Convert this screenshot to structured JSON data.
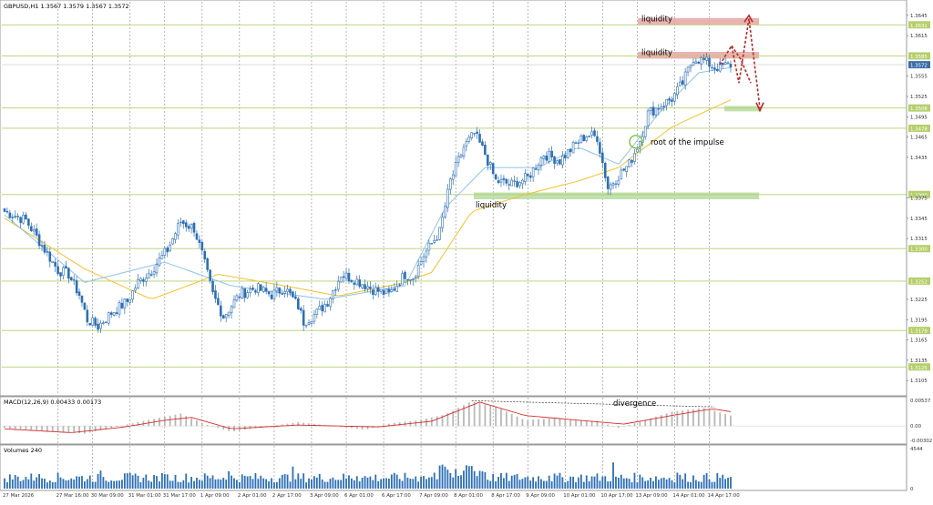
{
  "header": {
    "symbol": "GBPUSD,H1",
    "ohlc": "1.3567 1.3579 1.3567 1.3572"
  },
  "colors": {
    "bull": "#2d6fb5",
    "bear": "#2d6fb5",
    "grid": "#8c8c8c",
    "level": "#b5cf6b",
    "ma_fast": "#8fc3e8",
    "ma_slow": "#f2c230",
    "macd_signal": "#d32f2f",
    "macd_hist": "#b8b8b8",
    "volume": "#2d6fb5",
    "arrow": "#b52a2a",
    "zone_red": "#e8a4a4",
    "zone_green": "#b9dea4",
    "price_tag": "#b5cf6b"
  },
  "chart_data": {
    "type": "candlestick",
    "y_range": [
      1.3085,
      1.3665
    ],
    "price_ticks": [
      "1.3645",
      "1.3615",
      "1.3555",
      "1.3525",
      "1.3495",
      "1.3465",
      "1.3435",
      "1.3375",
      "1.3345",
      "1.3315",
      "1.3225",
      "1.3195",
      "1.3165",
      "1.3135",
      "1.3105"
    ],
    "levels": [
      {
        "price": 1.3631,
        "label": "1.3631"
      },
      {
        "price": 1.3585,
        "label": "1.3585"
      },
      {
        "price": 1.3508,
        "label": "1.3508"
      },
      {
        "price": 1.3478,
        "label": "1.3478"
      },
      {
        "price": 1.338,
        "label": "1.3380"
      },
      {
        "price": 1.33,
        "label": "1.3300"
      },
      {
        "price": 1.3252,
        "label": "1.3252"
      },
      {
        "price": 1.3179,
        "label": "1.3179"
      },
      {
        "price": 1.3125,
        "label": "1.3125"
      }
    ],
    "current_price": {
      "price": 1.3572,
      "label": "1.3572"
    },
    "x_labels": [
      "27 Mar 2026",
      "27 Mar 16:00",
      "30 Mar 09:00",
      "31 Mar 01:00",
      "31 Mar 17:00",
      "1 Apr 09:00",
      "2 Apr 01:00",
      "2 Apr 17:00",
      "3 Apr 09:00",
      "6 Apr 01:00",
      "6 Apr 17:00",
      "7 Apr 09:00",
      "8 Apr 01:00",
      "8 Apr 17:00",
      "9 Apr 09:00",
      "10 Apr 01:00",
      "10 Apr 17:00",
      "13 Apr 09:00",
      "14 Apr 01:00",
      "14 Apr 17:00"
    ],
    "close_anchors": [
      [
        0,
        1.3355
      ],
      [
        8,
        1.3342
      ],
      [
        14,
        1.3305
      ],
      [
        20,
        1.3268
      ],
      [
        24,
        1.3262
      ],
      [
        28,
        1.3232
      ],
      [
        31,
        1.3195
      ],
      [
        35,
        1.3185
      ],
      [
        40,
        1.3205
      ],
      [
        46,
        1.3222
      ],
      [
        50,
        1.325
      ],
      [
        55,
        1.3268
      ],
      [
        61,
        1.3298
      ],
      [
        66,
        1.334
      ],
      [
        71,
        1.333
      ],
      [
        74,
        1.3292
      ],
      [
        78,
        1.3232
      ],
      [
        82,
        1.32
      ],
      [
        88,
        1.3232
      ],
      [
        94,
        1.3242
      ],
      [
        100,
        1.3232
      ],
      [
        105,
        1.3242
      ],
      [
        110,
        1.3215
      ],
      [
        112,
        1.3192
      ],
      [
        117,
        1.3205
      ],
      [
        121,
        1.3222
      ],
      [
        126,
        1.3262
      ],
      [
        131,
        1.3255
      ],
      [
        138,
        1.324
      ],
      [
        144,
        1.3232
      ],
      [
        150,
        1.3262
      ],
      [
        153,
        1.3258
      ],
      [
        157,
        1.329
      ],
      [
        163,
        1.3325
      ],
      [
        167,
        1.34
      ],
      [
        172,
        1.345
      ],
      [
        176,
        1.347
      ],
      [
        180,
        1.344
      ],
      [
        184,
        1.34
      ],
      [
        190,
        1.3395
      ],
      [
        196,
        1.3405
      ],
      [
        202,
        1.344
      ],
      [
        208,
        1.343
      ],
      [
        214,
        1.3455
      ],
      [
        218,
        1.3468
      ],
      [
        222,
        1.3465
      ],
      [
        226,
        1.339
      ],
      [
        230,
        1.3408
      ],
      [
        234,
        1.3425
      ],
      [
        238,
        1.346
      ],
      [
        241,
        1.35
      ],
      [
        246,
        1.3512
      ],
      [
        250,
        1.3522
      ],
      [
        254,
        1.3545
      ],
      [
        258,
        1.3582
      ],
      [
        262,
        1.3578
      ],
      [
        266,
        1.3568
      ],
      [
        272,
        1.3572
      ]
    ],
    "ma_slow": [
      [
        0,
        1.3345
      ],
      [
        30,
        1.327
      ],
      [
        55,
        1.3225
      ],
      [
        80,
        1.3262
      ],
      [
        105,
        1.3245
      ],
      [
        125,
        1.323
      ],
      [
        150,
        1.325
      ],
      [
        160,
        1.3265
      ],
      [
        175,
        1.3355
      ],
      [
        195,
        1.338
      ],
      [
        215,
        1.34
      ],
      [
        230,
        1.342
      ],
      [
        250,
        1.348
      ],
      [
        272,
        1.352
      ]
    ],
    "ma_fast": [
      [
        0,
        1.335
      ],
      [
        30,
        1.325
      ],
      [
        60,
        1.328
      ],
      [
        85,
        1.3245
      ],
      [
        120,
        1.3225
      ],
      [
        150,
        1.3245
      ],
      [
        165,
        1.336
      ],
      [
        180,
        1.342
      ],
      [
        200,
        1.342
      ],
      [
        215,
        1.345
      ],
      [
        230,
        1.3425
      ],
      [
        245,
        1.35
      ],
      [
        260,
        1.356
      ],
      [
        272,
        1.3568
      ]
    ],
    "annotations": [
      {
        "text": "liquidity",
        "price": 1.364
      },
      {
        "text": "liquidity",
        "price": 1.359
      },
      {
        "text": "liquidity",
        "price": 1.337
      },
      {
        "text": "root of the impulse",
        "price": 1.3458
      },
      {
        "text": "divergence",
        "price": null
      }
    ],
    "macd": {
      "label": "MACD(12,26,9) 0.00433 0.00173",
      "ticks": [
        "0.00537",
        "0.00",
        "-0.00302"
      ],
      "range": [
        -0.00302,
        0.00537
      ]
    },
    "volume": {
      "label": "Volumes 240",
      "ticks": [
        "4544",
        "0"
      ],
      "max": 4544
    }
  }
}
